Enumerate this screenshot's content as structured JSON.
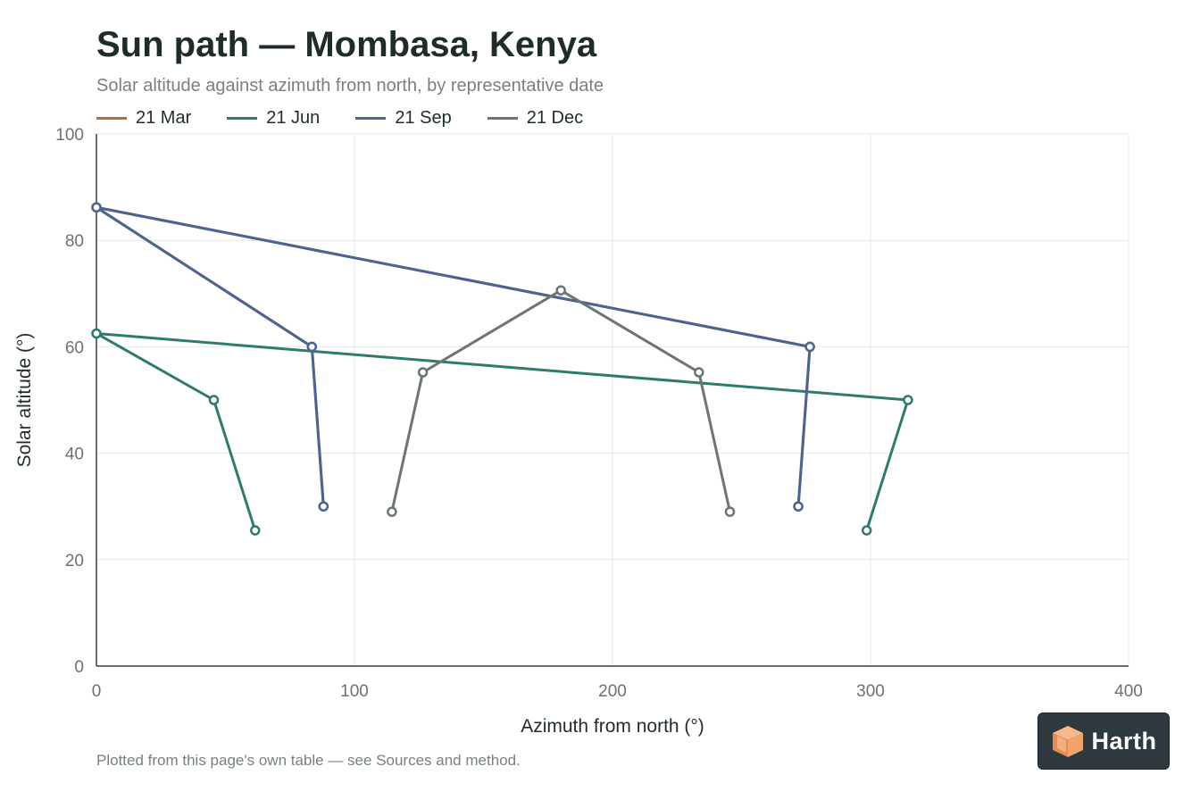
{
  "header": {
    "title": "Sun path — Mombasa, Kenya",
    "subtitle": "Solar altitude against azimuth from north, by representative date"
  },
  "footnote": "Plotted from this page's own table — see Sources and method.",
  "badge": {
    "text": "Harth",
    "icon": "cube-logo-icon"
  },
  "chart_data": {
    "type": "line",
    "title": "Sun path — Mombasa, Kenya",
    "subtitle": "Solar altitude against azimuth from north, by representative date",
    "xlabel": "Azimuth from north (°)",
    "ylabel": "Solar altitude (°)",
    "xlim": [
      0,
      400
    ],
    "ylim": [
      0,
      100
    ],
    "xticks": [
      0,
      100,
      200,
      300,
      400
    ],
    "yticks": [
      0,
      20,
      40,
      60,
      80,
      100
    ],
    "grid": true,
    "legend_position": "top-left",
    "series": [
      {
        "name": "21 Mar",
        "color": "#b86b3c",
        "points": [
          [
            88,
            30
          ],
          [
            83.5,
            60
          ],
          [
            0,
            86.2
          ],
          [
            276.5,
            60
          ],
          [
            272,
            30
          ]
        ]
      },
      {
        "name": "21 Jun",
        "color": "#2e7b6d",
        "points": [
          [
            61.5,
            25.5
          ],
          [
            45.5,
            50
          ],
          [
            0,
            62.5
          ],
          [
            314.5,
            50
          ],
          [
            298.5,
            25.5
          ]
        ]
      },
      {
        "name": "21 Sep",
        "color": "#4a6496",
        "points": [
          [
            88,
            30
          ],
          [
            83.5,
            60
          ],
          [
            0,
            86.2
          ],
          [
            276.5,
            60
          ],
          [
            272,
            30
          ]
        ]
      },
      {
        "name": "21 Dec",
        "color": "#6b7572",
        "points": [
          [
            114.5,
            29
          ],
          [
            126.5,
            55.2
          ],
          [
            180,
            70.6
          ],
          [
            233.5,
            55.2
          ],
          [
            245.5,
            29
          ]
        ]
      }
    ]
  }
}
